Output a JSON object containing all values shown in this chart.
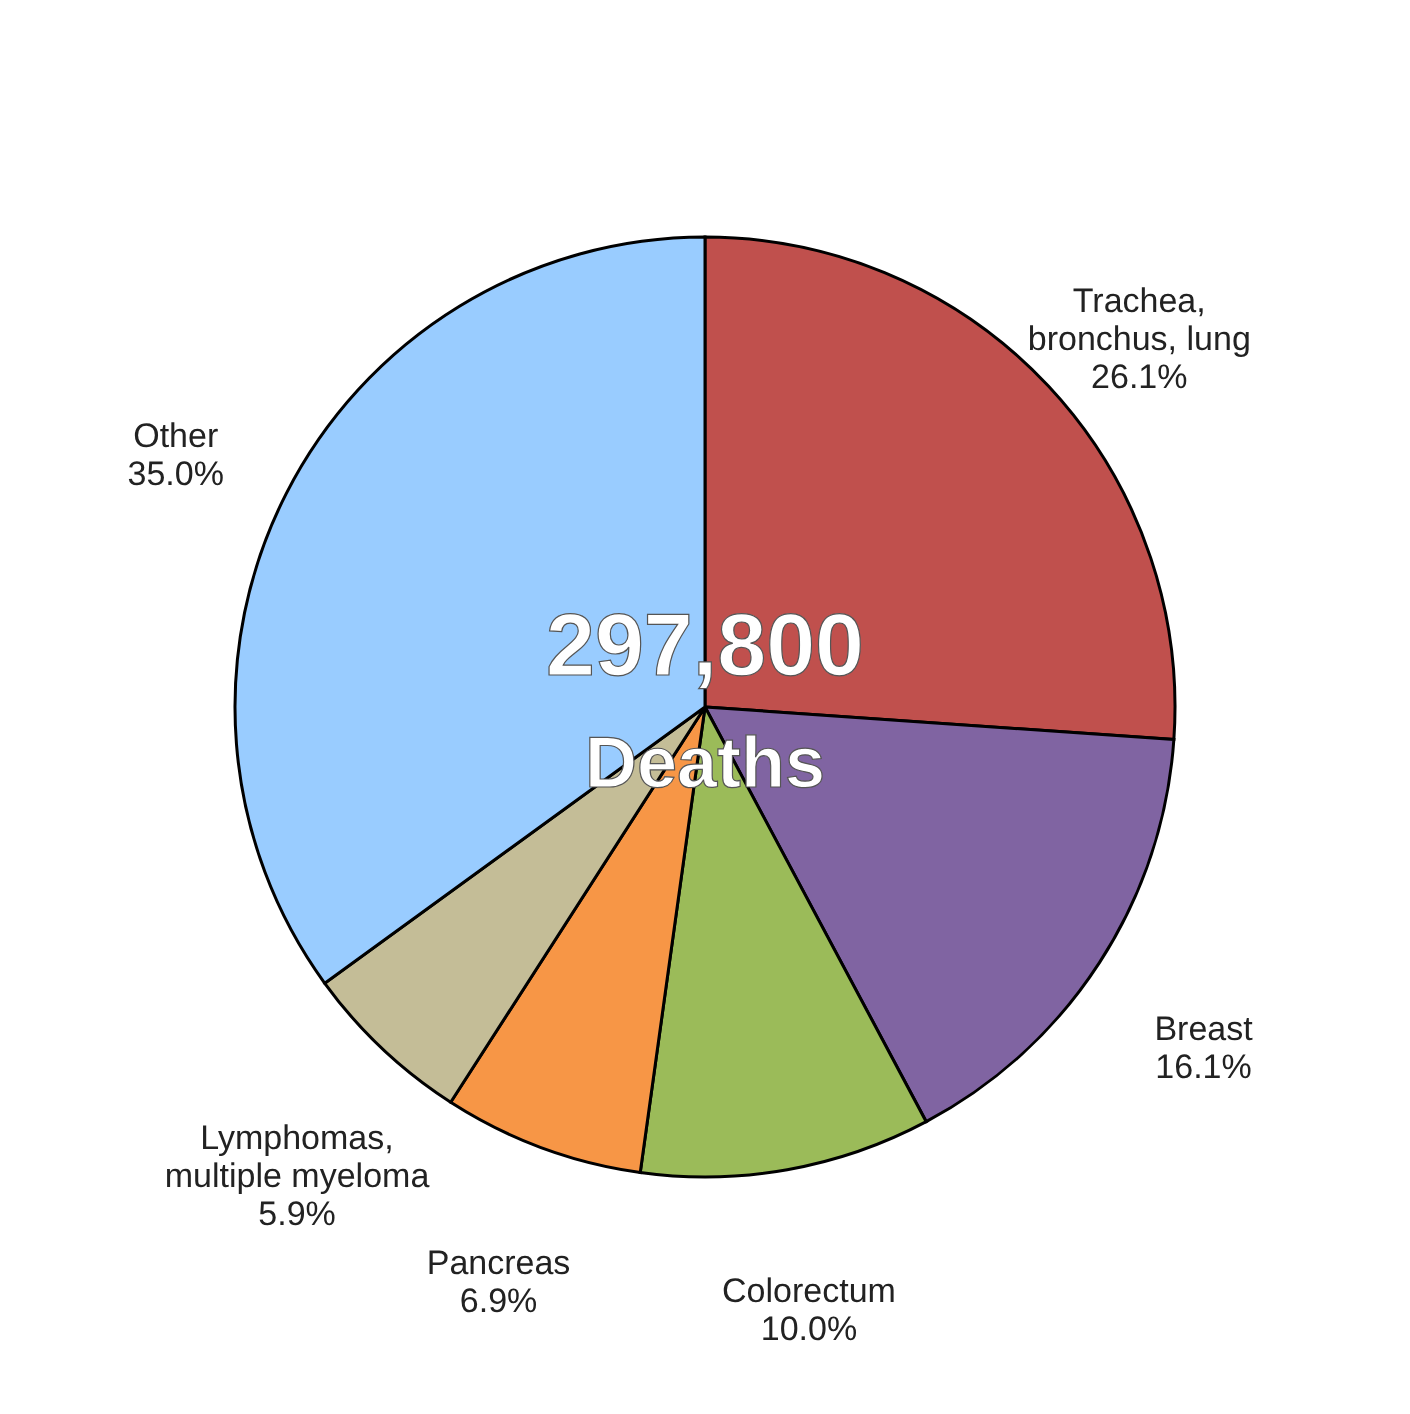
{
  "chart_data": {
    "type": "pie",
    "categories": [
      "Trachea, bronchus, lung",
      "Breast",
      "Colorectum",
      "Pancreas",
      "Lymphomas, multiple myeloma",
      "Other"
    ],
    "values": [
      26.1,
      16.1,
      10.0,
      6.9,
      5.9,
      35.0
    ],
    "value_labels": [
      "26.1%",
      "16.1%",
      "10.0%",
      "6.9%",
      "5.9%",
      "35.0%"
    ],
    "colors": [
      "#c0504d",
      "#8064a2",
      "#9bbb59",
      "#f79646",
      "#c4bd97",
      "#99ccff"
    ],
    "annotations": [
      "297,800",
      "Deaths"
    ],
    "legend": false
  }
}
